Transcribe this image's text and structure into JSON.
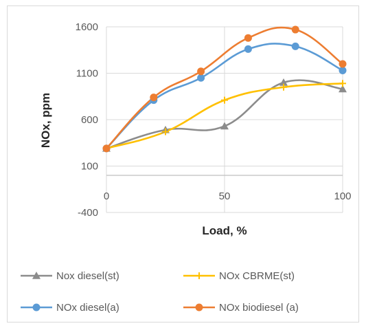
{
  "chart_data": {
    "type": "line",
    "title": "",
    "xlabel": "Load, %",
    "ylabel": "NOx, ppm",
    "xlim": [
      0,
      100
    ],
    "ylim": [
      -400,
      1600
    ],
    "x_ticks": [
      0,
      50,
      100
    ],
    "y_ticks": [
      -400,
      100,
      600,
      1100,
      1600
    ],
    "grid": true,
    "legend": "bottom",
    "series": [
      {
        "name": "Nox diesel(st)",
        "color": "#8c8c8c",
        "marker": "triangle",
        "x": [
          0,
          25,
          50,
          75,
          100
        ],
        "y": [
          290,
          490,
          530,
          1000,
          930
        ]
      },
      {
        "name": "NOx CBRME(st)",
        "color": "#ffc000",
        "marker": "cross",
        "x": [
          0,
          25,
          50,
          75,
          100
        ],
        "y": [
          290,
          470,
          810,
          950,
          990
        ]
      },
      {
        "name": "NOx diesel(a)",
        "color": "#5b9bd5",
        "marker": "circle",
        "x": [
          0,
          20,
          40,
          60,
          80,
          100
        ],
        "y": [
          290,
          810,
          1050,
          1360,
          1390,
          1130
        ]
      },
      {
        "name": "NOx biodiesel (a)",
        "color": "#ed7d31",
        "marker": "circle",
        "x": [
          0,
          20,
          40,
          60,
          80,
          100
        ],
        "y": [
          290,
          840,
          1120,
          1480,
          1570,
          1200
        ]
      }
    ]
  }
}
